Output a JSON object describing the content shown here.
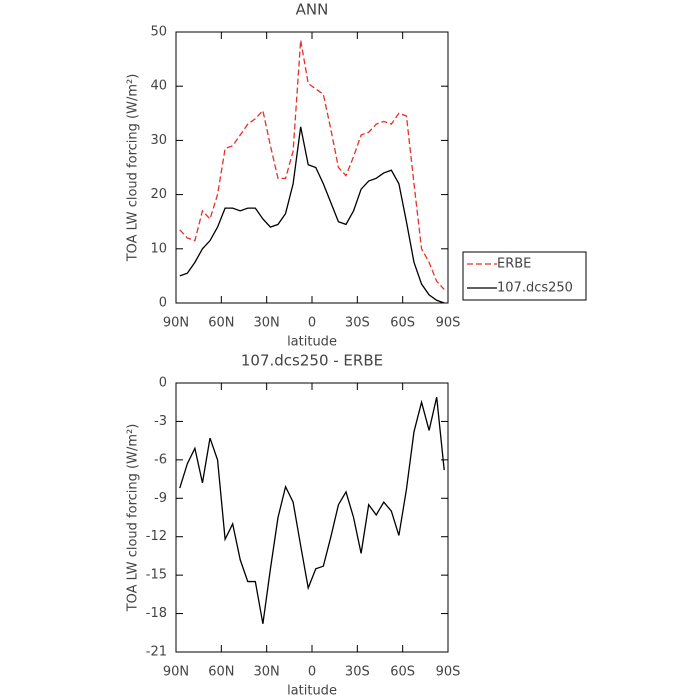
{
  "chart_data": [
    {
      "type": "line",
      "title": "ANN",
      "x_label": "latitude",
      "y_label": "TOA LW cloud forcing (W/m²)",
      "x": [
        87.5,
        82.5,
        77.5,
        72.5,
        67.5,
        62.5,
        57.5,
        52.5,
        47.5,
        42.5,
        37.5,
        32.5,
        27.5,
        22.5,
        17.5,
        12.5,
        7.5,
        2.5,
        -2.5,
        -7.5,
        -12.5,
        -17.5,
        -22.5,
        -27.5,
        -32.5,
        -37.5,
        -42.5,
        -47.5,
        -52.5,
        -57.5,
        -62.5,
        -67.5,
        -72.5,
        -77.5,
        -82.5,
        -87.5
      ],
      "series": [
        {
          "name": "ERBE",
          "color": "#e8302a",
          "linestyle": "dashed",
          "values": [
            13.5,
            12,
            11.5,
            17,
            15.5,
            20,
            28.5,
            29,
            31,
            33,
            34,
            35.5,
            29,
            23,
            23,
            28,
            48.5,
            40.5,
            39.5,
            38.5,
            32,
            25,
            23.5,
            27,
            31,
            31.5,
            33,
            33.5,
            33,
            35,
            34.5,
            22,
            10,
            7.5,
            4,
            2.5
          ]
        },
        {
          "name": "107.dcs250",
          "color": "#000000",
          "linestyle": "solid",
          "values": [
            5,
            5.5,
            7.5,
            10,
            11.5,
            14,
            17.5,
            17.5,
            17,
            17.5,
            17.5,
            15.5,
            14,
            14.5,
            16.5,
            22,
            32.5,
            25.5,
            25,
            22,
            18.5,
            15,
            14.5,
            17,
            21,
            22.5,
            23,
            24,
            24.5,
            22,
            15,
            7.5,
            3.5,
            1.5,
            0.5,
            0
          ]
        }
      ],
      "xlim": [
        90,
        -90
      ],
      "xticks": [
        {
          "value": 90,
          "label": "90N"
        },
        {
          "value": 60,
          "label": "60N"
        },
        {
          "value": 30,
          "label": "30N"
        },
        0,
        {
          "value": -30,
          "label": "30S"
        },
        {
          "value": -60,
          "label": "60S"
        },
        {
          "value": -90,
          "label": "90S"
        }
      ],
      "ylim": [
        0,
        50
      ],
      "yticks": [
        0,
        10,
        20,
        30,
        40,
        50
      ],
      "legend": "right"
    },
    {
      "type": "line",
      "title": "107.dcs250 - ERBE",
      "x_label": "latitude",
      "y_label": "TOA LW cloud forcing (W/m²)",
      "x": [
        87.5,
        82.5,
        77.5,
        72.5,
        67.5,
        62.5,
        57.5,
        52.5,
        47.5,
        42.5,
        37.5,
        32.5,
        27.5,
        22.5,
        17.5,
        12.5,
        7.5,
        2.5,
        -2.5,
        -7.5,
        -12.5,
        -17.5,
        -22.5,
        -27.5,
        -32.5,
        -37.5,
        -42.5,
        -47.5,
        -52.5,
        -57.5,
        -62.5,
        -67.5,
        -72.5,
        -77.5,
        -82.5,
        -87.5
      ],
      "values": [
        -8.2,
        -6.3,
        -5.1,
        -7.8,
        -4.3,
        -6,
        -12.2,
        -11,
        -13.8,
        -15.5,
        -15.5,
        -18.8,
        -14.5,
        -10.5,
        -8.1,
        -9.3,
        -12.7,
        -16,
        -14.5,
        -14.3,
        -12,
        -9.5,
        -8.5,
        -10.5,
        -13.3,
        -9.5,
        -10.3,
        -9.3,
        -10,
        -11.9,
        -8.3,
        -3.8,
        -1.5,
        -3.7,
        -1.1,
        -6.8
      ],
      "color": "#000000",
      "xlim": [
        90,
        -90
      ],
      "xticks": [
        {
          "value": 90,
          "label": "90N"
        },
        {
          "value": 60,
          "label": "60N"
        },
        {
          "value": 30,
          "label": "30N"
        },
        0,
        {
          "value": -30,
          "label": "30S"
        },
        {
          "value": -60,
          "label": "60S"
        },
        {
          "value": -90,
          "label": "90S"
        }
      ],
      "ylim": [
        -21,
        0
      ],
      "yticks": [
        0,
        -3,
        -6,
        -9,
        -12,
        -15,
        -18,
        -21
      ]
    }
  ]
}
